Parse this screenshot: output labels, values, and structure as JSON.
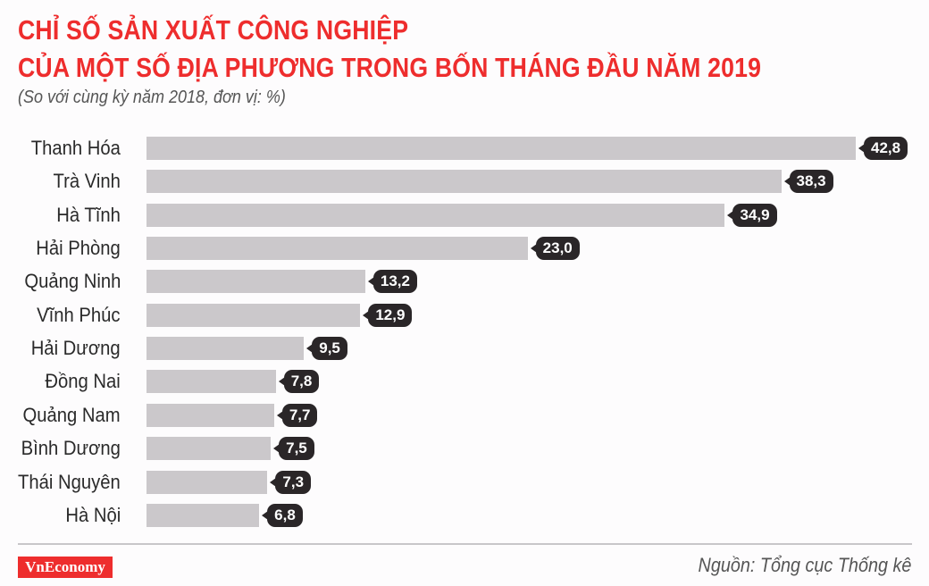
{
  "header": {
    "title_line1": "CHỈ SỐ SẢN XUẤT CÔNG NGHIỆP",
    "title_line2": "CỦA MỘT SỐ ĐỊA PHƯƠNG TRONG BỐN THÁNG ĐẦU NĂM 2019",
    "subtitle": "(So với cùng kỳ năm 2018, đơn vị: %)"
  },
  "footer": {
    "brand": "VnEconomy",
    "source": "Nguồn: Tổng cục Thống kê"
  },
  "colors": {
    "title": "#ee2d2d",
    "bar": "#cbc8cb",
    "bubble": "#2a2628",
    "brand_bg": "#ee2d2d"
  },
  "chart_data": {
    "type": "bar",
    "orientation": "horizontal",
    "title": "CHỈ SỐ SẢN XUẤT CÔNG NGHIỆP CỦA MỘT SỐ ĐỊA PHƯƠNG TRONG BỐN THÁNG ĐẦU NĂM 2019",
    "subtitle": "(So với cùng kỳ năm 2018, đơn vị: %)",
    "xlabel": "",
    "ylabel": "",
    "grid": false,
    "legend": null,
    "categories": [
      "Thanh Hóa",
      "Trà Vinh",
      "Hà Tĩnh",
      "Hải Phòng",
      "Quảng Ninh",
      "Vĩnh Phúc",
      "Hải Dương",
      "Đồng Nai",
      "Quảng Nam",
      "Bình Dương",
      "Thái Nguyên",
      "Hà Nội"
    ],
    "values": [
      42.8,
      38.3,
      34.9,
      23.0,
      13.2,
      12.9,
      9.5,
      7.8,
      7.7,
      7.5,
      7.3,
      6.8
    ],
    "value_labels": [
      "42,8",
      "38,3",
      "34,9",
      "23,0",
      "13,2",
      "12,9",
      "9,5",
      "7,8",
      "7,7",
      "7,5",
      "7,3",
      "6,8"
    ],
    "source": "Nguồn: Tổng cục Thống kê"
  }
}
